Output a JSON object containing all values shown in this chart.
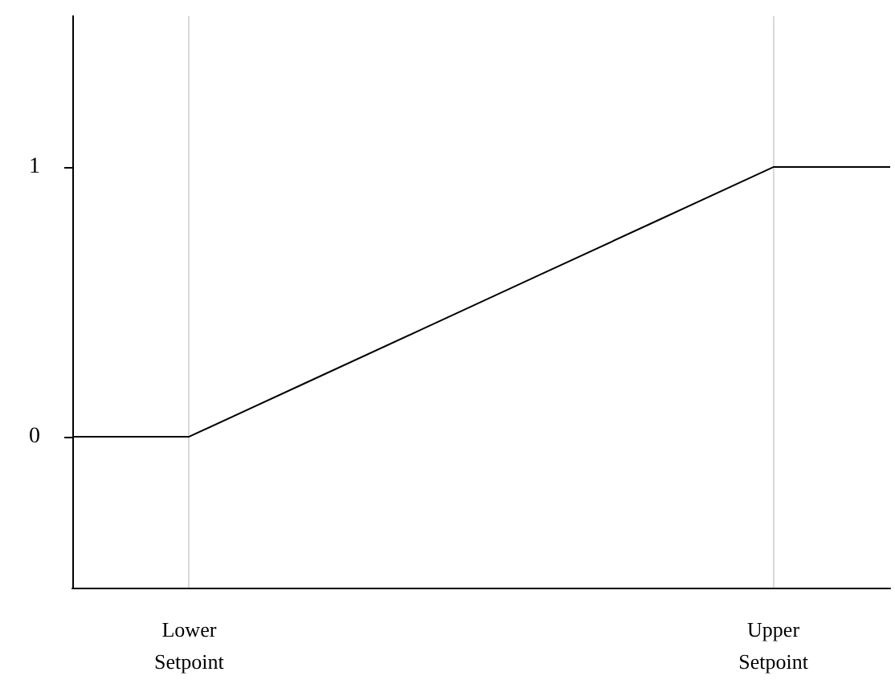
{
  "chart_data": {
    "type": "line",
    "categories": [
      null,
      "Lower\nSetpoint",
      null,
      null,
      null,
      null,
      "Upper\nSetpoint",
      null
    ],
    "values": [
      0,
      0,
      0.2,
      0.4,
      0.6,
      0.8,
      1,
      1
    ],
    "color": "#000000",
    "ylim": [
      -0.56,
      1.56
    ],
    "yticks": [
      0,
      1
    ],
    "grid": "x",
    "marker": "none",
    "line_style": "solid"
  }
}
